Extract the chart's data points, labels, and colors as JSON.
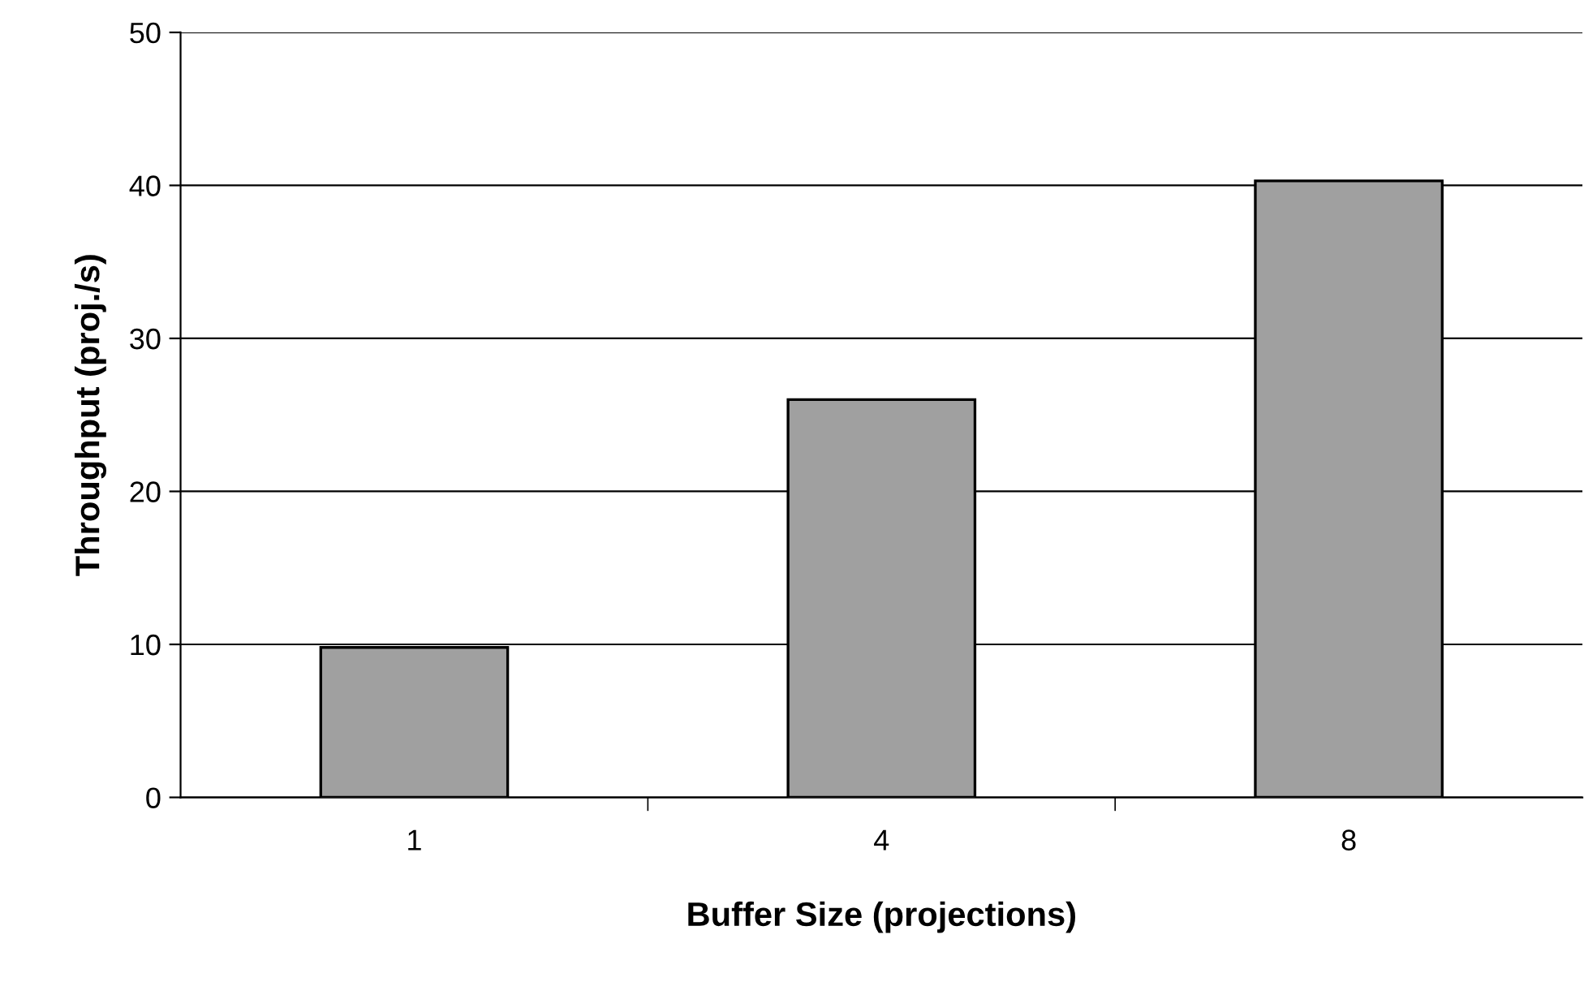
{
  "chart_data": {
    "type": "bar",
    "xlabel": "Buffer Size (projections)",
    "ylabel": "Throughput (proj./s)",
    "categories": [
      "1",
      "4",
      "8"
    ],
    "values": [
      9.8,
      26,
      40.3
    ],
    "color": "#a0a0a0",
    "ylim": [
      0,
      50
    ],
    "yticks": [
      0,
      10,
      20,
      30,
      40,
      50
    ],
    "grid": "y"
  }
}
